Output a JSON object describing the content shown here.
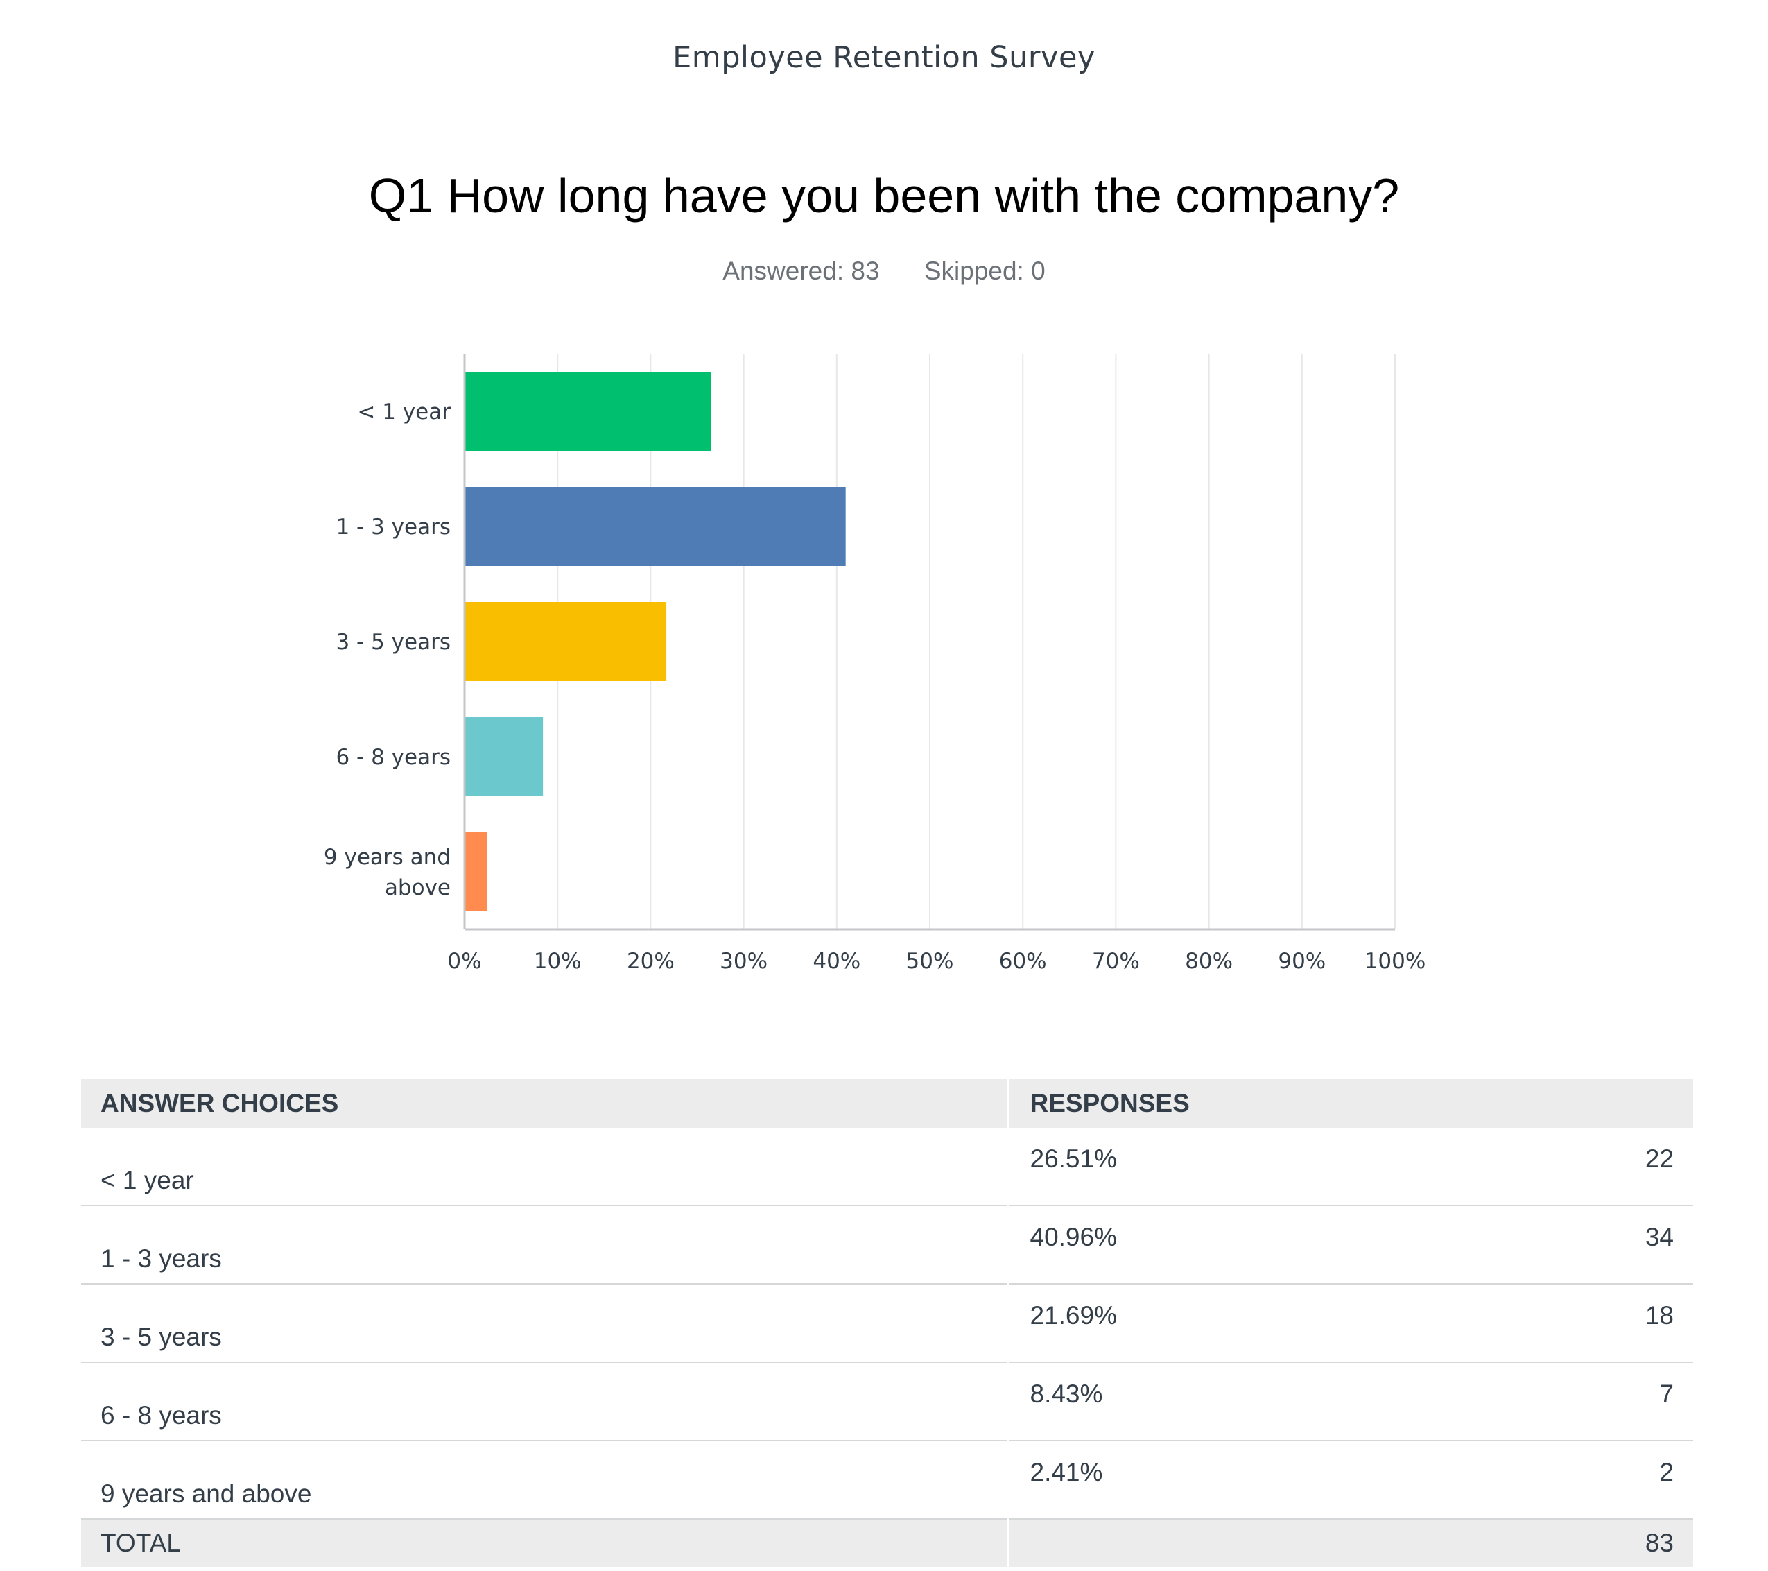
{
  "survey_title": "Employee Retention Survey",
  "question": "Q1 How long have you been with the company?",
  "answered": "Answered: 83",
  "skipped": "Skipped: 0",
  "chart_data": {
    "type": "bar",
    "orientation": "horizontal",
    "categories": [
      "< 1 year",
      "1 - 3 years",
      "3 - 5 years",
      "6 - 8 years",
      "9 years and above"
    ],
    "category_label_lines": [
      [
        "< 1 year"
      ],
      [
        "1 - 3 years"
      ],
      [
        "3 - 5 years"
      ],
      [
        "6 - 8 years"
      ],
      [
        "9 years and",
        "above"
      ]
    ],
    "values": [
      26.51,
      40.96,
      21.69,
      8.43,
      2.41
    ],
    "colors": [
      "#00bf6f",
      "#507cb6",
      "#f9be00",
      "#6bc8cd",
      "#ff8b4f"
    ],
    "xlim": [
      0,
      100
    ],
    "x_ticks": [
      "0%",
      "10%",
      "20%",
      "30%",
      "40%",
      "50%",
      "60%",
      "70%",
      "80%",
      "90%",
      "100%"
    ],
    "grid": true,
    "title": "",
    "xlabel": "",
    "ylabel": ""
  },
  "table": {
    "headers": {
      "choices": "ANSWER CHOICES",
      "responses": "RESPONSES"
    },
    "rows": [
      {
        "choice": "< 1 year",
        "percent": "26.51%",
        "count": "22"
      },
      {
        "choice": "1 - 3 years",
        "percent": "40.96%",
        "count": "34"
      },
      {
        "choice": "3 - 5 years",
        "percent": "21.69%",
        "count": "18"
      },
      {
        "choice": "6 - 8 years",
        "percent": "8.43%",
        "count": "7"
      },
      {
        "choice": "9 years and above",
        "percent": "2.41%",
        "count": "2"
      }
    ],
    "total_label": "TOTAL",
    "total_count": "83"
  }
}
